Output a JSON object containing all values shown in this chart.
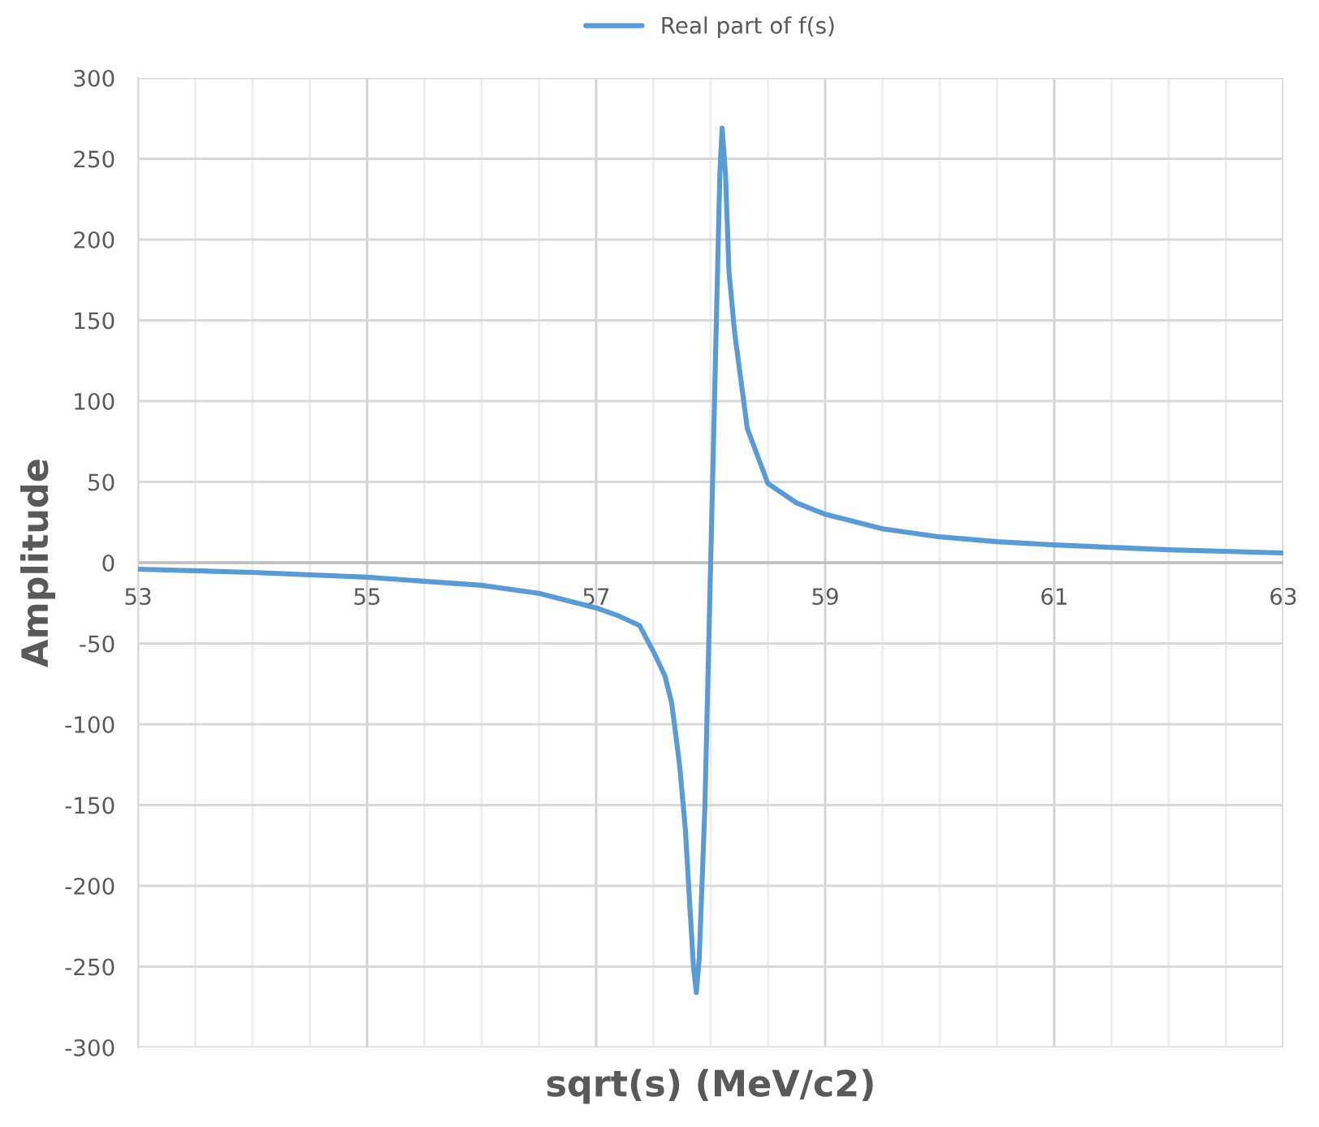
{
  "chart_data": {
    "type": "line",
    "xlabel": "sqrt(s) (MeV/c2)",
    "ylabel": "Amplitude",
    "legend": "top",
    "series": [
      {
        "name": "Real part of f(s)",
        "color": "#5b9bd5",
        "x": [
          53,
          54,
          55,
          56,
          56.5,
          57,
          57.2,
          57.38,
          57.5,
          57.6,
          57.66,
          57.73,
          57.78,
          57.82,
          57.85,
          57.875,
          57.9,
          57.95,
          58.0,
          58.05,
          58.08,
          58.1,
          58.13,
          58.16,
          58.21,
          58.32,
          58.5,
          58.75,
          59,
          59.5,
          60,
          60.5,
          61,
          62,
          63
        ],
        "values": [
          -4,
          -6,
          -9,
          -14,
          -19,
          -28,
          -33,
          -39,
          -55,
          -70,
          -87,
          -126,
          -166,
          -215,
          -250,
          -266,
          -245,
          -150,
          0,
          150,
          240,
          269,
          240,
          180,
          142,
          83,
          49,
          37,
          30,
          21,
          16,
          13,
          11,
          8,
          6
        ]
      }
    ],
    "xlim": [
      53,
      63
    ],
    "ylim": [
      -300,
      300
    ],
    "xticks": [
      53,
      {
        "value": 53.5,
        "label": null
      },
      {
        "value": 54,
        "label": null
      },
      {
        "value": 54.5,
        "label": null
      },
      55,
      {
        "value": 55.5,
        "label": null
      },
      {
        "value": 56,
        "label": null
      },
      {
        "value": 56.5,
        "label": null
      },
      57,
      {
        "value": 57.5,
        "label": null
      },
      {
        "value": 58,
        "label": null
      },
      {
        "value": 58.5,
        "label": null
      },
      59,
      {
        "value": 59.5,
        "label": null
      },
      {
        "value": 60,
        "label": null
      },
      {
        "value": 60.5,
        "label": null
      },
      61,
      {
        "value": 61.5,
        "label": null
      },
      {
        "value": 62,
        "label": null
      },
      {
        "value": 62.5,
        "label": null
      },
      63
    ],
    "yticks": [
      -300,
      -250,
      -200,
      -150,
      -100,
      -50,
      0,
      50,
      100,
      150,
      200,
      250,
      300
    ],
    "grid": true,
    "marker": "none",
    "line_style": "solid"
  }
}
